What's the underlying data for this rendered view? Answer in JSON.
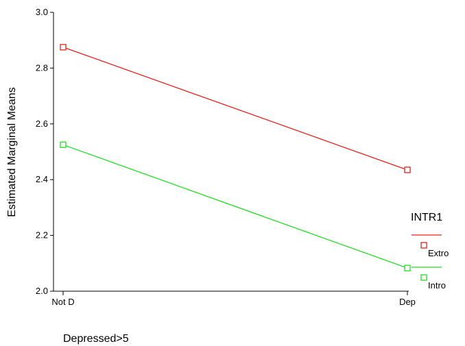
{
  "chart_data": {
    "type": "line",
    "title": "",
    "xlabel": "Depressed>5",
    "ylabel": "Estimated Marginal Means",
    "categories": [
      "Not D",
      "Dep"
    ],
    "ylim": [
      2.0,
      3.0
    ],
    "yticks": [
      "2.0",
      "2.2",
      "2.4",
      "2.6",
      "2.8",
      "3.0"
    ],
    "grid": false,
    "legend": {
      "title": "INTR1",
      "placement": "right"
    },
    "series": [
      {
        "name": "Extro",
        "color": "#e8201a",
        "values": [
          2.875,
          2.435
        ],
        "marker": "square"
      },
      {
        "name": "Intro",
        "color": "#22dd22",
        "values": [
          2.525,
          2.083
        ],
        "marker": "square"
      }
    ]
  }
}
